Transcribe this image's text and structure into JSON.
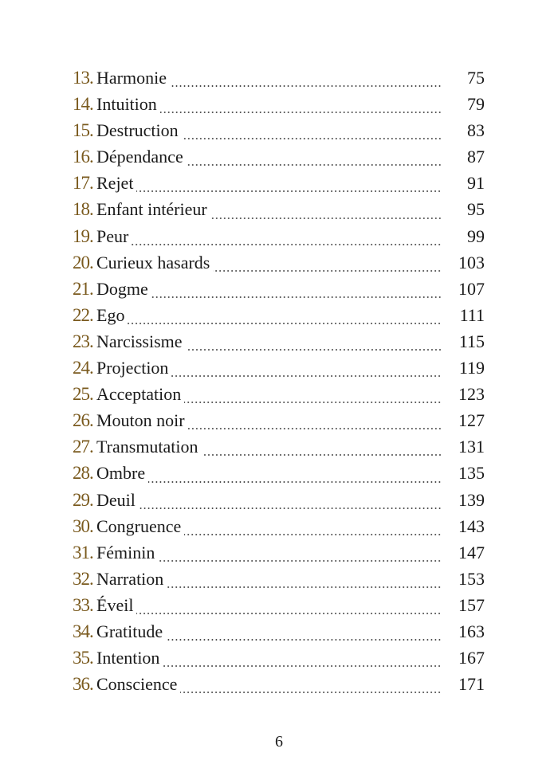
{
  "toc": {
    "entries": [
      {
        "number": "13.",
        "title": "Harmonie",
        "page": "75"
      },
      {
        "number": "14.",
        "title": "Intuition",
        "page": "79"
      },
      {
        "number": "15.",
        "title": "Destruction",
        "page": "83"
      },
      {
        "number": "16.",
        "title": "Dépendance",
        "page": "87"
      },
      {
        "number": "17.",
        "title": "Rejet",
        "page": "91"
      },
      {
        "number": "18.",
        "title": "Enfant intérieur",
        "page": "95"
      },
      {
        "number": "19.",
        "title": "Peur",
        "page": "99"
      },
      {
        "number": "20.",
        "title": "Curieux hasards",
        "page": "103"
      },
      {
        "number": "21.",
        "title": "Dogme",
        "page": "107"
      },
      {
        "number": "22.",
        "title": "Ego",
        "page": "111"
      },
      {
        "number": "23.",
        "title": "Narcissisme",
        "page": "115"
      },
      {
        "number": "24.",
        "title": "Projection",
        "page": "119"
      },
      {
        "number": "25.",
        "title": "Acceptation",
        "page": "123"
      },
      {
        "number": "26.",
        "title": "Mouton noir",
        "page": "127"
      },
      {
        "number": "27.",
        "title": "Transmutation",
        "page": "131"
      },
      {
        "number": "28.",
        "title": "Ombre",
        "page": "135"
      },
      {
        "number": "29.",
        "title": "Deuil",
        "page": "139"
      },
      {
        "number": "30.",
        "title": "Congruence",
        "page": "143"
      },
      {
        "number": "31.",
        "title": "Féminin",
        "page": "147"
      },
      {
        "number": "32.",
        "title": "Narration",
        "page": "153"
      },
      {
        "number": "33.",
        "title": "Éveil",
        "page": "157"
      },
      {
        "number": "34.",
        "title": "Gratitude",
        "page": "163"
      },
      {
        "number": "35.",
        "title": "Intention",
        "page": "167"
      },
      {
        "number": "36.",
        "title": "Conscience",
        "page": "171"
      }
    ]
  },
  "footer": {
    "page_number": "6"
  },
  "colors": {
    "chapter_number": "#7a5a1e",
    "text": "#1a1a1a"
  }
}
